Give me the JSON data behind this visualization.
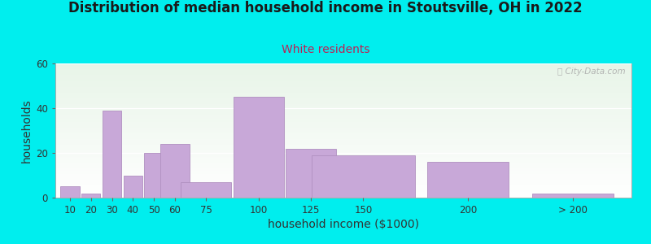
{
  "title": "Distribution of median household income in Stoutsville, OH in 2022",
  "subtitle": "White residents",
  "xlabel": "household income ($1000)",
  "ylabel": "households",
  "background_outer": "#00EEEE",
  "bar_color": "#C8A8D8",
  "bar_edge_color": "#B090C0",
  "ylim": [
    0,
    60
  ],
  "yticks": [
    0,
    20,
    40,
    60
  ],
  "bar_labels": [
    "10",
    "20",
    "30",
    "40",
    "50",
    "60",
    "75",
    "100",
    "125",
    "150",
    "200",
    "> 200"
  ],
  "bar_heights": [
    5,
    2,
    39,
    10,
    20,
    24,
    7,
    45,
    22,
    19,
    16,
    2
  ],
  "bar_centers": [
    10,
    20,
    30,
    40,
    50,
    60,
    75,
    100,
    125,
    150,
    200,
    250
  ],
  "bar_widths": [
    9,
    9,
    9,
    9,
    9,
    14,
    24,
    24,
    24,
    49,
    39,
    39
  ],
  "xlim": [
    3,
    278
  ],
  "watermark": "City-Data.com",
  "title_fontsize": 12,
  "subtitle_fontsize": 10,
  "axis_label_fontsize": 10,
  "tick_fontsize": 8.5
}
